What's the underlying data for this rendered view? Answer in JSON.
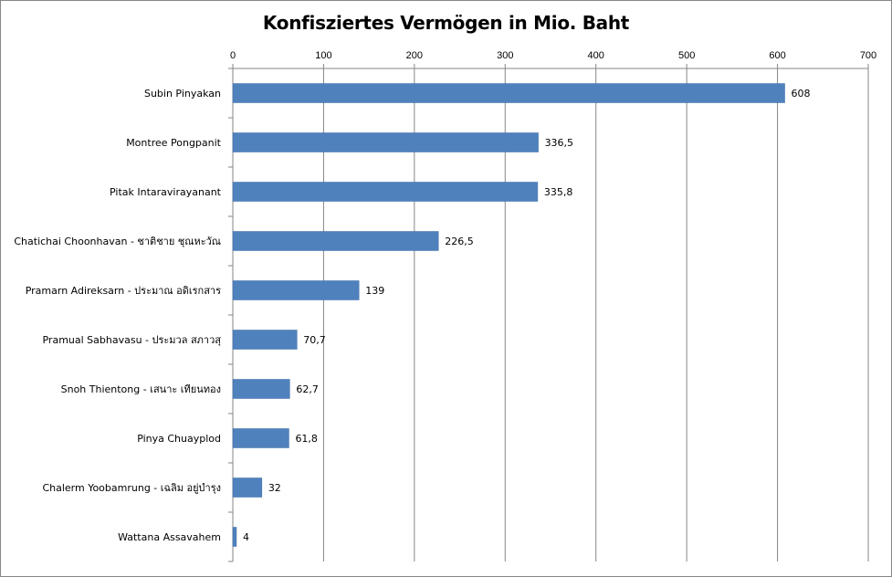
{
  "chart_data": {
    "type": "bar",
    "orientation": "horizontal",
    "title": "Konfisziertes Vermögen in Mio. Baht",
    "xlabel": "",
    "ylabel": "",
    "xlim": [
      0,
      700
    ],
    "xticks": [
      "0",
      "100",
      "200",
      "300",
      "400",
      "500",
      "600",
      "700"
    ],
    "axis_position": "top",
    "grid": true,
    "bar_color": "#4f81bd",
    "categories": [
      "Subin Pinyakan",
      "Montree Pongpanit",
      "Pitak Intaravirayanant",
      "Chatichai Choonhavan - ชาติชาย ชุณหะวัณ",
      "Pramarn Adireksarn - ประมาณ อดิเรกสาร",
      "Pramual Sabhavasu - ประมวล สภาวสุ",
      "Snoh Thientong - เสนาะ เทียนทอง",
      "Pinya Chuayplod",
      "Chalerm Yoobamrung - เฉลิม อยู่บำรุง",
      "Wattana Assavahem"
    ],
    "values": [
      608,
      336.5,
      335.8,
      226.5,
      139,
      70.7,
      62.7,
      61.8,
      32,
      4
    ],
    "value_labels": [
      "608",
      "336,5",
      "335,8",
      "226,5",
      "139",
      "70,7",
      "62,7",
      "61,8",
      "32",
      "4"
    ]
  }
}
